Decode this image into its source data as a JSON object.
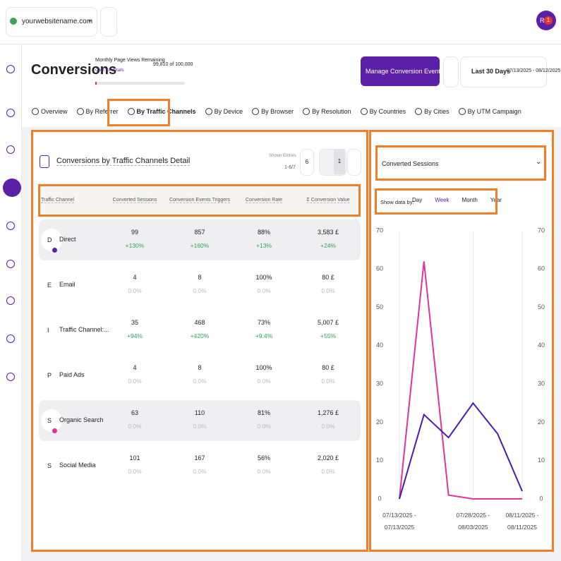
{
  "header": {
    "site": "yourwebsitename.com",
    "avatar": "RF",
    "badge": "1"
  },
  "page": {
    "title": "Conversions",
    "quota_label": "Monthly Page Views Remaining",
    "quota_value": "99,810 of 100,000",
    "details_link": "Click for details",
    "manage_button": "Manage Conversion Events",
    "range_label": "Last 30 Days",
    "range_dates": "07/13/2025 - 08/12/2025"
  },
  "tabs": {
    "items": [
      "Overview",
      "By Referrer",
      "By Traffic Channels",
      "By Device",
      "By Browser",
      "By Resolution",
      "By Countries",
      "By Cities",
      "By UTM Campaign"
    ],
    "active": 2
  },
  "table": {
    "title": "Conversions by Traffic Channels Detail",
    "shown_entries_label": "Shown Entries",
    "shown_entries": "1-6/7",
    "page_size": "6",
    "page": "1",
    "columns": [
      "Traffic Channel",
      "Converted Sessions",
      "Conversion Events Triggers",
      "Conversion Rate",
      "Σ Conversion Value"
    ],
    "rows": [
      {
        "initial": "D",
        "name": "Direct",
        "dot": "#5b1fa8",
        "highlighted": true,
        "cells": [
          [
            "99",
            "+130%"
          ],
          [
            "857",
            "+160%"
          ],
          [
            "88%",
            "+13%"
          ],
          [
            "3,583 £",
            "+24%"
          ]
        ]
      },
      {
        "initial": "E",
        "name": "Email",
        "highlighted": false,
        "cells": [
          [
            "4",
            "0.0%"
          ],
          [
            "8",
            "0.0%"
          ],
          [
            "100%",
            "0.0%"
          ],
          [
            "80 £",
            "0.0%"
          ]
        ]
      },
      {
        "initial": "I",
        "name": "Traffic Channel:...",
        "highlighted": false,
        "cells": [
          [
            "35",
            "+94%"
          ],
          [
            "468",
            "+420%"
          ],
          [
            "73%",
            "+9.4%"
          ],
          [
            "5,007 £",
            "+55%"
          ]
        ]
      },
      {
        "initial": "P",
        "name": "Paid Ads",
        "highlighted": false,
        "cells": [
          [
            "4",
            "0.0%"
          ],
          [
            "8",
            "0.0%"
          ],
          [
            "100%",
            "0.0%"
          ],
          [
            "80 £",
            "0.0%"
          ]
        ]
      },
      {
        "initial": "S",
        "name": "Organic Search",
        "dot": "#e0339e",
        "highlighted": true,
        "cells": [
          [
            "63",
            "0.0%"
          ],
          [
            "110",
            "0.0%"
          ],
          [
            "81%",
            "0.0%"
          ],
          [
            "1,276 £",
            "0.0%"
          ]
        ]
      },
      {
        "initial": "S",
        "name": "Social Media",
        "highlighted": false,
        "cells": [
          [
            "101",
            "0.0%"
          ],
          [
            "167",
            "0.0%"
          ],
          [
            "56%",
            "0.0%"
          ],
          [
            "2,020 £",
            "0.0%"
          ]
        ]
      }
    ]
  },
  "panel": {
    "metric": "Converted Sessions",
    "show_by_label": "Show data by:",
    "periods": [
      "Day",
      "Week",
      "Month",
      "Year"
    ],
    "active_period": 1
  },
  "chart_data": {
    "type": "line",
    "categories": [
      "07/13/2025 - 07/13/2025",
      null,
      null,
      "07/28/2025 - 08/03/2025",
      null,
      "08/11/2025 - 08/11/2025"
    ],
    "series": [
      {
        "color": "#e0339e",
        "values": [
          0,
          62,
          1,
          0,
          0,
          0
        ]
      },
      {
        "color": "#4a1bb0",
        "values": [
          0,
          22,
          16,
          25,
          17,
          2
        ]
      }
    ],
    "ylim": [
      0,
      70
    ],
    "yticks": [
      0,
      10,
      20,
      30,
      40,
      50,
      60,
      70
    ],
    "y2lim": [
      0,
      70
    ],
    "y2ticks": [
      0,
      10,
      20,
      30,
      40,
      50,
      60,
      70
    ],
    "grid": false,
    "x_grid": true
  }
}
